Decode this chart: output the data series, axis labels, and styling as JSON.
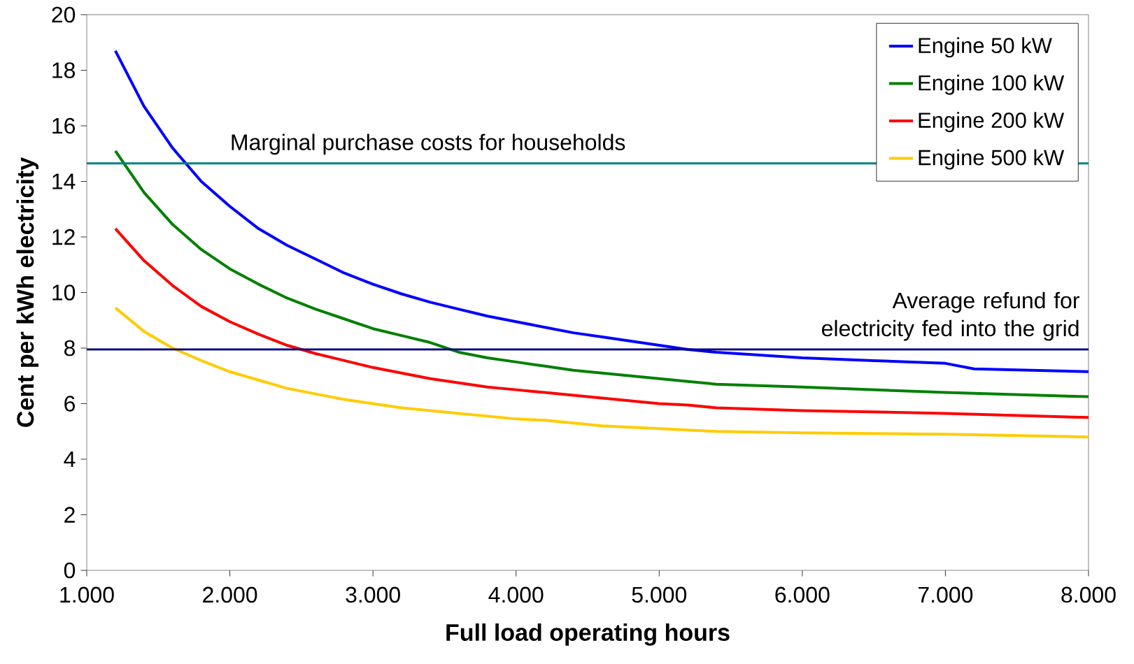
{
  "chart_data": {
    "type": "line",
    "xlabel": "Full load operating hours",
    "ylabel": "Cent per kWh electricity",
    "x": [
      1200,
      1400,
      1600,
      1800,
      2000,
      2200,
      2400,
      2600,
      2800,
      3000,
      3200,
      3400,
      3600,
      3800,
      4000,
      4200,
      4400,
      4600,
      4800,
      5000,
      5200,
      5400,
      6000,
      7000,
      8000
    ],
    "series": [
      {
        "name": "Engine 50 kW",
        "color": "#0000ff",
        "x": [
          1200,
          1400,
          1600,
          1800,
          2000,
          2200,
          2400,
          2600,
          2800,
          3000,
          3200,
          3400,
          3600,
          3800,
          4000,
          4200,
          4400,
          4600,
          4800,
          5000,
          5200,
          5400,
          6000,
          6500,
          7000,
          7200,
          8000
        ],
        "values": [
          18.7,
          16.7,
          15.2,
          14.0,
          13.1,
          12.3,
          11.7,
          11.2,
          10.7,
          10.3,
          9.95,
          9.65,
          9.4,
          9.15,
          8.95,
          8.75,
          8.55,
          8.4,
          8.25,
          8.1,
          7.95,
          7.85,
          7.65,
          7.55,
          7.45,
          7.25,
          7.15
        ]
      },
      {
        "name": "Engine 100 kW",
        "color": "#008000",
        "values": [
          15.1,
          13.6,
          12.45,
          11.55,
          10.85,
          10.3,
          9.8,
          9.4,
          9.05,
          8.7,
          8.45,
          8.2,
          7.85,
          7.65,
          7.5,
          7.35,
          7.2,
          7.1,
          7.0,
          6.9,
          6.8,
          6.7,
          6.6,
          6.4,
          6.25
        ]
      },
      {
        "name": "Engine 200 kW",
        "color": "#ff0000",
        "values": [
          12.3,
          11.15,
          10.25,
          9.5,
          8.95,
          8.5,
          8.1,
          7.8,
          7.55,
          7.3,
          7.1,
          6.9,
          6.75,
          6.6,
          6.5,
          6.4,
          6.3,
          6.2,
          6.1,
          6.0,
          5.95,
          5.85,
          5.75,
          5.65,
          5.5
        ]
      },
      {
        "name": "Engine 500 kW",
        "color": "#ffcc00",
        "values": [
          9.45,
          8.6,
          8.0,
          7.55,
          7.15,
          6.85,
          6.55,
          6.35,
          6.15,
          6.0,
          5.85,
          5.75,
          5.65,
          5.55,
          5.45,
          5.4,
          5.3,
          5.2,
          5.15,
          5.1,
          5.05,
          5.0,
          4.95,
          4.9,
          4.8
        ]
      }
    ],
    "xlim": [
      1000,
      8000
    ],
    "ylim": [
      0,
      20
    ],
    "xticks": [
      {
        "value": 1000,
        "label": "1.000"
      },
      {
        "value": 2000,
        "label": "2.000"
      },
      {
        "value": 3000,
        "label": "3.000"
      },
      {
        "value": 4000,
        "label": "4.000"
      },
      {
        "value": 5000,
        "label": "5.000"
      },
      {
        "value": 6000,
        "label": "6.000"
      },
      {
        "value": 7000,
        "label": "7.000"
      },
      {
        "value": 8000,
        "label": "8.000"
      }
    ],
    "yticks": [
      0,
      2,
      4,
      6,
      8,
      10,
      12,
      14,
      16,
      18,
      20
    ],
    "ref_lines": [
      {
        "axis": "y",
        "value": 14.65,
        "label": "Marginal purchase costs for households",
        "color": "#008080"
      },
      {
        "axis": "y",
        "value": 7.95,
        "label": "Average refund for electricity fed into the grid",
        "color": "#000080"
      }
    ],
    "grid": false,
    "legend": "top right",
    "marker": "none",
    "line_style": "solid"
  }
}
